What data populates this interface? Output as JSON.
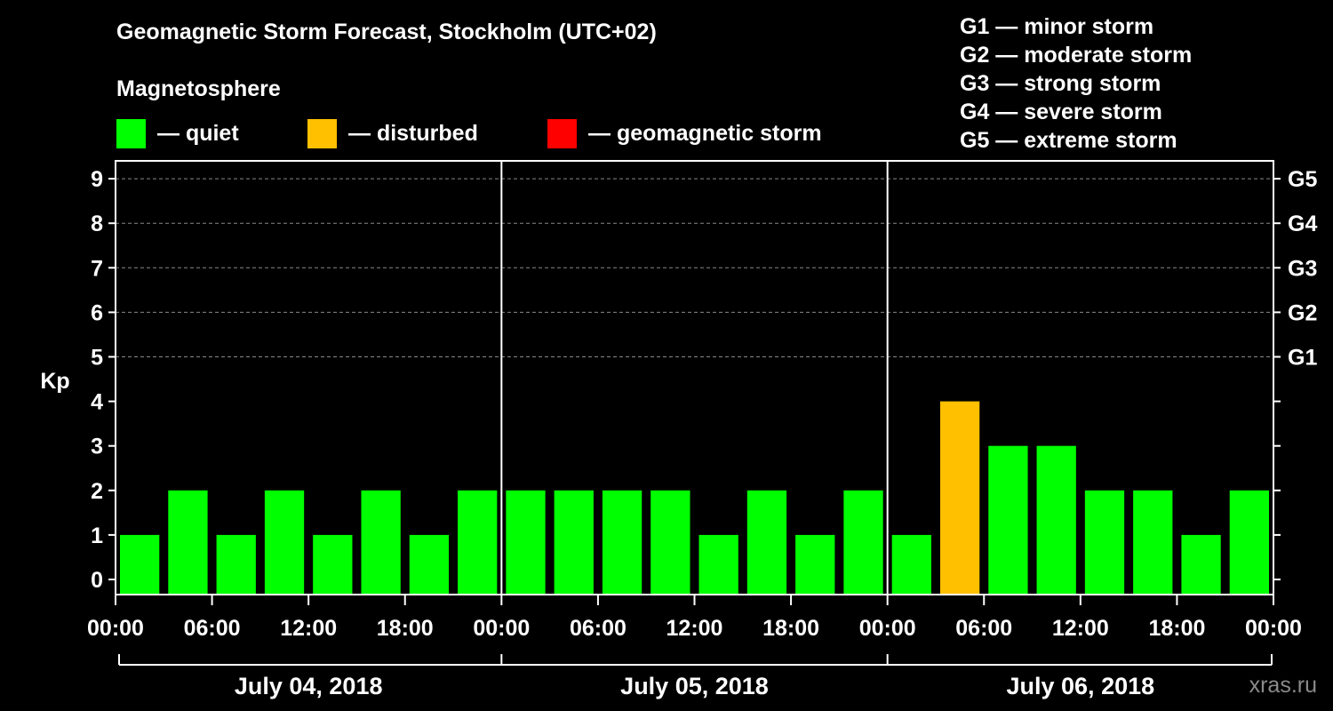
{
  "title": "Geomagnetic Storm Forecast, Stockholm (UTC+02)",
  "legend": {
    "title": "Magnetosphere",
    "items": [
      {
        "label": "— quiet",
        "color": "#00FF00"
      },
      {
        "label": "— disturbed",
        "color": "#FFC000"
      },
      {
        "label": "— geomagnetic storm",
        "color": "#FF0000"
      }
    ]
  },
  "storm_scale": [
    "G1 — minor storm",
    "G2 — moderate storm",
    "G3 — strong storm",
    "G4 — severe storm",
    "G5 — extreme storm"
  ],
  "watermark": "xras.ru",
  "chart_data": {
    "type": "bar",
    "ylabel": "Kp",
    "ylim": [
      0,
      9
    ],
    "y_ticks": [
      "0",
      "1",
      "2",
      "3",
      "4",
      "5",
      "6",
      "7",
      "8",
      "9"
    ],
    "right_ticks": [
      {
        "kp": 5,
        "label": "G1"
      },
      {
        "kp": 6,
        "label": "G2"
      },
      {
        "kp": 7,
        "label": "G3"
      },
      {
        "kp": 8,
        "label": "G4"
      },
      {
        "kp": 9,
        "label": "G5"
      }
    ],
    "x_tick_labels": [
      "00:00",
      "06:00",
      "12:00",
      "18:00",
      "00:00",
      "06:00",
      "12:00",
      "18:00",
      "00:00",
      "06:00",
      "12:00",
      "18:00",
      "00:00"
    ],
    "days": [
      "July 04, 2018",
      "July 05, 2018",
      "July 06, 2018"
    ],
    "grid_dashed_at": [
      5,
      6,
      7,
      8,
      9
    ],
    "values": [
      1,
      2,
      1,
      2,
      1,
      2,
      1,
      2,
      2,
      2,
      2,
      2,
      1,
      2,
      1,
      2,
      1,
      4,
      3,
      3,
      2,
      2,
      1,
      2
    ],
    "levels": [
      "quiet",
      "quiet",
      "quiet",
      "quiet",
      "quiet",
      "quiet",
      "quiet",
      "quiet",
      "quiet",
      "quiet",
      "quiet",
      "quiet",
      "quiet",
      "quiet",
      "quiet",
      "quiet",
      "quiet",
      "disturbed",
      "quiet",
      "quiet",
      "quiet",
      "quiet",
      "quiet",
      "quiet"
    ],
    "level_colors": {
      "quiet": "#00FF00",
      "disturbed": "#FFC000",
      "storm": "#FF0000"
    }
  }
}
